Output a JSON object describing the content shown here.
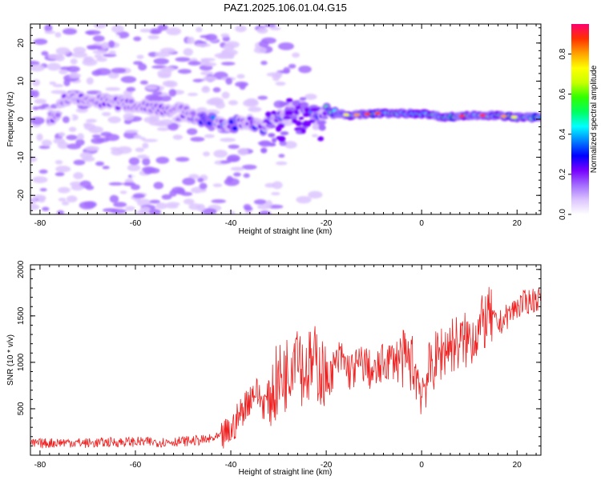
{
  "title": "PAZ1.2025.106.01.04.G15",
  "chart_data": [
    {
      "type": "heatmap",
      "xlabel": "Height of straight line (km)",
      "ylabel": "Frequency (Hz)",
      "xlim": [
        -82,
        25
      ],
      "ylim": [
        -25,
        25
      ],
      "xticks": [
        -80,
        -60,
        -40,
        -20,
        0,
        20
      ],
      "yticks": [
        -20,
        -10,
        0,
        10,
        20
      ],
      "colorbar": {
        "label": "Normalized spectral amplitude",
        "range": [
          0,
          0.95
        ],
        "ticks": [
          "0.0",
          "0.2",
          "0.4",
          "0.6",
          "0.8"
        ],
        "tick_values": [
          0,
          0.2,
          0.4,
          0.6,
          0.8
        ],
        "colors": [
          "#ffffff",
          "#dcc4ff",
          "#a36cff",
          "#7800ff",
          "#0000ff",
          "#0080ff",
          "#00ffff",
          "#00ff60",
          "#30ff00",
          "#c8ff00",
          "#ffff00",
          "#ffa000",
          "#ff3000",
          "#ff0070"
        ]
      },
      "ridge": [
        {
          "x": -76,
          "y": 5
        },
        {
          "x": -70,
          "y": 5
        },
        {
          "x": -62,
          "y": 4
        },
        {
          "x": -55,
          "y": 3
        },
        {
          "x": -50,
          "y": 2
        },
        {
          "x": -47,
          "y": 0.5
        },
        {
          "x": -43,
          "y": -1
        },
        {
          "x": -40,
          "y": -1.5
        },
        {
          "x": -37,
          "y": -0.5
        },
        {
          "x": -33,
          "y": -2
        },
        {
          "x": -28,
          "y": 2
        },
        {
          "x": -25,
          "y": 3
        },
        {
          "x": -22,
          "y": 1
        },
        {
          "x": -20,
          "y": 2
        },
        {
          "x": -15,
          "y": 1
        },
        {
          "x": -10,
          "y": 1.5
        },
        {
          "x": -5,
          "y": 1.5
        },
        {
          "x": 0,
          "y": 1.5
        },
        {
          "x": 5,
          "y": 0.5
        },
        {
          "x": 10,
          "y": 1
        },
        {
          "x": 15,
          "y": 1
        },
        {
          "x": 20,
          "y": 0.5
        },
        {
          "x": 25,
          "y": 0.5
        }
      ]
    },
    {
      "type": "line",
      "xlabel": "Height of straight line (km)",
      "ylabel": "SNR (10 * v/v)",
      "xlim": [
        -82,
        25
      ],
      "ylim": [
        0,
        2050
      ],
      "xticks": [
        -80,
        -60,
        -40,
        -20,
        0,
        20
      ],
      "yticks": [
        500,
        1000,
        1500,
        2000
      ],
      "color": "#ee2020",
      "series": [
        {
          "x": [
            -82,
            -75,
            -70,
            -65,
            -60,
            -55,
            -50,
            -45,
            -42,
            -40,
            -38,
            -35,
            -33,
            -30,
            -28,
            -26,
            -25,
            -22,
            -20,
            -17,
            -15,
            -12,
            -10,
            -8,
            -5,
            -2,
            0,
            2,
            4,
            6,
            8,
            10,
            12,
            14,
            16,
            18,
            20,
            22,
            25
          ],
          "y": [
            120,
            140,
            130,
            140,
            145,
            140,
            150,
            165,
            200,
            250,
            450,
            700,
            550,
            800,
            900,
            1300,
            900,
            1000,
            800,
            1050,
            900,
            1000,
            850,
            1000,
            1050,
            1000,
            700,
            950,
            1100,
            1200,
            1200,
            1250,
            1350,
            1500,
            1400,
            1500,
            1600,
            1650,
            1700
          ]
        }
      ]
    }
  ]
}
